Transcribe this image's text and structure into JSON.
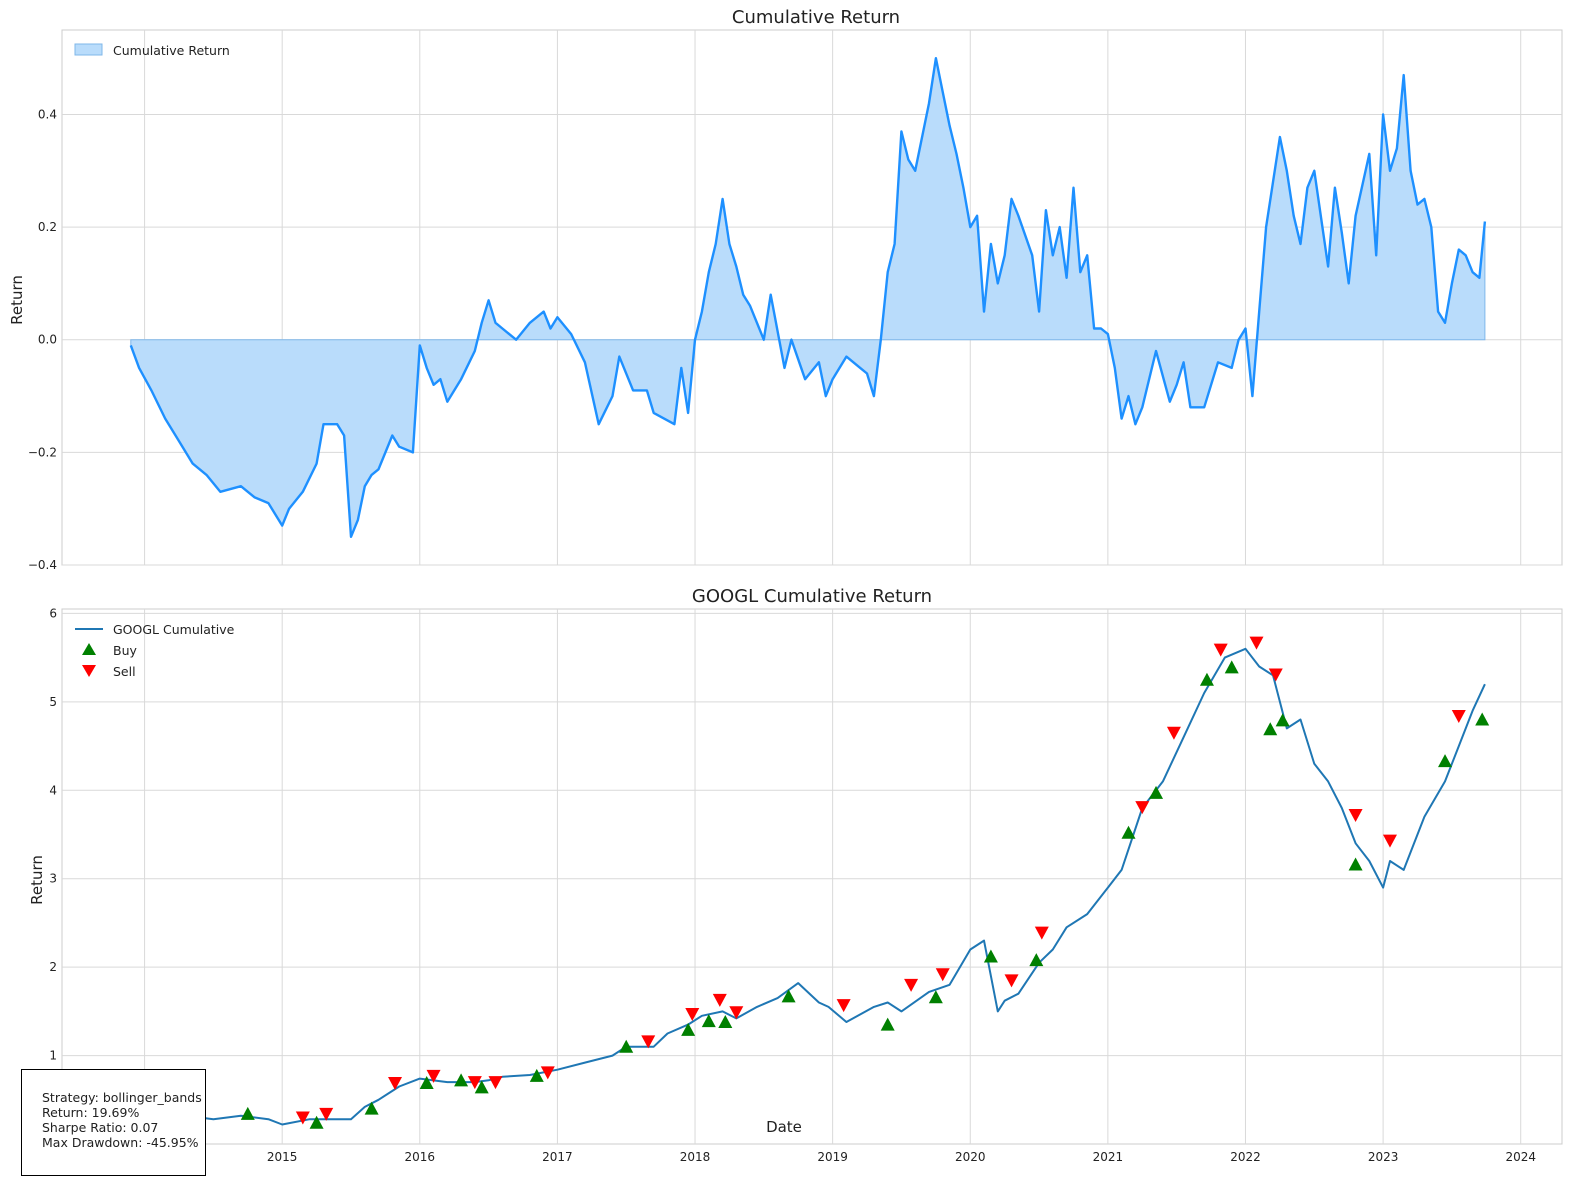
{
  "charts_meta": {
    "strategy_box": {
      "strategy": "Strategy: bollinger_bands",
      "return": "Return: 19.69%",
      "sharpe": "Sharpe Ratio: 0.07",
      "drawdown": "Max Drawdown: -45.95%"
    }
  },
  "chart_data": [
    {
      "type": "area",
      "title": "Cumulative Return",
      "xlabel": "",
      "ylabel": "Return",
      "xlim": [
        2013.4,
        2024.3
      ],
      "ylim": [
        -0.4,
        0.55
      ],
      "x_ticks": [
        "2014",
        "2015",
        "2016",
        "2017",
        "2018",
        "2019",
        "2020",
        "2021",
        "2022",
        "2023",
        "2024"
      ],
      "y_ticks": [
        -0.4,
        -0.2,
        0.0,
        0.2,
        0.4
      ],
      "y_tick_labels": [
        "−0.4",
        "−0.2",
        "0.0",
        "0.2",
        "0.4"
      ],
      "grid": true,
      "legend_position": "top-left",
      "colors": {
        "line": "#1e90ff",
        "fill": "#b9dcfb",
        "fill_edge": "#7fb7ea"
      },
      "series": [
        {
          "name": "Cumulative Return",
          "x": [
            2013.9,
            2013.96,
            2014.05,
            2014.15,
            2014.25,
            2014.35,
            2014.45,
            2014.55,
            2014.7,
            2014.8,
            2014.9,
            2015.0,
            2015.05,
            2015.15,
            2015.25,
            2015.3,
            2015.4,
            2015.45,
            2015.5,
            2015.55,
            2015.6,
            2015.65,
            2015.7,
            2015.8,
            2015.85,
            2015.95,
            2016.0,
            2016.05,
            2016.1,
            2016.15,
            2016.2,
            2016.3,
            2016.4,
            2016.45,
            2016.5,
            2016.55,
            2016.6,
            2016.7,
            2016.8,
            2016.9,
            2016.95,
            2017.0,
            2017.1,
            2017.2,
            2017.3,
            2017.4,
            2017.45,
            2017.55,
            2017.65,
            2017.7,
            2017.85,
            2017.9,
            2017.95,
            2018.0,
            2018.05,
            2018.1,
            2018.15,
            2018.2,
            2018.25,
            2018.3,
            2018.35,
            2018.4,
            2018.5,
            2018.55,
            2018.65,
            2018.7,
            2018.8,
            2018.9,
            2018.95,
            2019.0,
            2019.1,
            2019.2,
            2019.25,
            2019.3,
            2019.35,
            2019.4,
            2019.45,
            2019.5,
            2019.55,
            2019.6,
            2019.7,
            2019.75,
            2019.8,
            2019.85,
            2019.9,
            2019.95,
            2020.0,
            2020.05,
            2020.1,
            2020.15,
            2020.2,
            2020.25,
            2020.3,
            2020.35,
            2020.45,
            2020.5,
            2020.55,
            2020.6,
            2020.65,
            2020.7,
            2020.75,
            2020.8,
            2020.85,
            2020.9,
            2020.95,
            2021.0,
            2021.05,
            2021.1,
            2021.15,
            2021.2,
            2021.25,
            2021.35,
            2021.45,
            2021.5,
            2021.55,
            2021.6,
            2021.7,
            2021.75,
            2021.8,
            2021.9,
            2021.95,
            2022.0,
            2022.05,
            2022.1,
            2022.15,
            2022.2,
            2022.25,
            2022.3,
            2022.35,
            2022.4,
            2022.45,
            2022.5,
            2022.6,
            2022.65,
            2022.7,
            2022.75,
            2022.8,
            2022.9,
            2022.95,
            2023.0,
            2023.05,
            2023.1,
            2023.15,
            2023.2,
            2023.25,
            2023.3,
            2023.35,
            2023.4,
            2023.45,
            2023.5,
            2023.55,
            2023.6,
            2023.65,
            2023.7,
            2023.74
          ],
          "y": [
            -0.01,
            -0.05,
            -0.09,
            -0.14,
            -0.18,
            -0.22,
            -0.24,
            -0.27,
            -0.26,
            -0.28,
            -0.29,
            -0.33,
            -0.3,
            -0.27,
            -0.22,
            -0.15,
            -0.15,
            -0.17,
            -0.35,
            -0.32,
            -0.26,
            -0.24,
            -0.23,
            -0.17,
            -0.19,
            -0.2,
            -0.01,
            -0.05,
            -0.08,
            -0.07,
            -0.11,
            -0.07,
            -0.02,
            0.03,
            0.07,
            0.03,
            0.02,
            0.0,
            0.03,
            0.05,
            0.02,
            0.04,
            0.01,
            -0.04,
            -0.15,
            -0.1,
            -0.03,
            -0.09,
            -0.09,
            -0.13,
            -0.15,
            -0.05,
            -0.13,
            0.0,
            0.05,
            0.12,
            0.17,
            0.25,
            0.17,
            0.13,
            0.08,
            0.06,
            0.0,
            0.08,
            -0.05,
            0.0,
            -0.07,
            -0.04,
            -0.1,
            -0.07,
            -0.03,
            -0.05,
            -0.06,
            -0.1,
            0.0,
            0.12,
            0.17,
            0.37,
            0.32,
            0.3,
            0.42,
            0.5,
            0.44,
            0.38,
            0.33,
            0.27,
            0.2,
            0.22,
            0.05,
            0.17,
            0.1,
            0.15,
            0.25,
            0.22,
            0.15,
            0.05,
            0.23,
            0.15,
            0.2,
            0.11,
            0.27,
            0.12,
            0.15,
            0.02,
            0.02,
            0.01,
            -0.05,
            -0.14,
            -0.1,
            -0.15,
            -0.12,
            -0.02,
            -0.11,
            -0.08,
            -0.04,
            -0.12,
            -0.12,
            -0.08,
            -0.04,
            -0.05,
            0.0,
            0.02,
            -0.1,
            0.05,
            0.2,
            0.28,
            0.36,
            0.3,
            0.22,
            0.17,
            0.27,
            0.3,
            0.13,
            0.27,
            0.19,
            0.1,
            0.22,
            0.33,
            0.15,
            0.4,
            0.3,
            0.34,
            0.47,
            0.3,
            0.24,
            0.25,
            0.2,
            0.05,
            0.03,
            0.1,
            0.16,
            0.15,
            0.12,
            0.11,
            0.21
          ]
        }
      ]
    },
    {
      "type": "line",
      "title": "GOOGL Cumulative Return",
      "xlabel": "Date",
      "ylabel": "Return",
      "xlim": [
        2013.4,
        2024.3
      ],
      "ylim": [
        0.0,
        6.05
      ],
      "x_ticks": [
        "2014",
        "2015",
        "2016",
        "2017",
        "2018",
        "2019",
        "2020",
        "2021",
        "2022",
        "2023",
        "2024"
      ],
      "y_ticks": [
        1,
        2,
        3,
        4,
        5,
        6
      ],
      "grid": true,
      "legend_position": "top-left",
      "colors": {
        "line": "#1f77b4",
        "buy": "#008000",
        "sell": "#ff0000"
      },
      "series": [
        {
          "name": "GOOGL Cumulative",
          "x": [
            2013.9,
            2014.1,
            2014.3,
            2014.5,
            2014.7,
            2014.9,
            2015.0,
            2015.2,
            2015.4,
            2015.5,
            2015.6,
            2015.7,
            2015.85,
            2016.0,
            2016.2,
            2016.4,
            2016.5,
            2016.6,
            2016.8,
            2017.0,
            2017.2,
            2017.4,
            2017.5,
            2017.7,
            2017.8,
            2017.95,
            2018.05,
            2018.2,
            2018.3,
            2018.45,
            2018.6,
            2018.75,
            2018.9,
            2018.97,
            2019.1,
            2019.3,
            2019.4,
            2019.5,
            2019.7,
            2019.85,
            2020.0,
            2020.1,
            2020.2,
            2020.25,
            2020.35,
            2020.5,
            2020.6,
            2020.7,
            2020.85,
            2021.0,
            2021.1,
            2021.25,
            2021.4,
            2021.55,
            2021.7,
            2021.85,
            2022.0,
            2022.1,
            2022.2,
            2022.3,
            2022.4,
            2022.5,
            2022.6,
            2022.7,
            2022.8,
            2022.9,
            2023.0,
            2023.05,
            2023.15,
            2023.3,
            2023.45,
            2023.55,
            2023.65,
            2023.74
          ],
          "y": [
            0.28,
            0.33,
            0.32,
            0.28,
            0.32,
            0.28,
            0.22,
            0.28,
            0.28,
            0.28,
            0.42,
            0.5,
            0.65,
            0.74,
            0.7,
            0.7,
            0.72,
            0.76,
            0.78,
            0.84,
            0.92,
            1.0,
            1.1,
            1.1,
            1.25,
            1.35,
            1.45,
            1.5,
            1.42,
            1.55,
            1.65,
            1.82,
            1.6,
            1.55,
            1.38,
            1.55,
            1.6,
            1.5,
            1.72,
            1.8,
            2.2,
            2.3,
            1.5,
            1.62,
            1.7,
            2.05,
            2.2,
            2.45,
            2.6,
            2.9,
            3.1,
            3.8,
            4.1,
            4.6,
            5.1,
            5.5,
            5.6,
            5.4,
            5.3,
            4.7,
            4.8,
            4.3,
            4.1,
            3.8,
            3.4,
            3.2,
            2.9,
            3.2,
            3.1,
            3.7,
            4.1,
            4.5,
            4.9,
            5.2
          ]
        }
      ],
      "buy_signals": {
        "name": "Buy",
        "x": [
          2014.2,
          2014.75,
          2015.25,
          2015.65,
          2016.05,
          2016.3,
          2016.45,
          2016.85,
          2017.5,
          2017.95,
          2018.1,
          2018.22,
          2018.68,
          2019.4,
          2019.75,
          2020.15,
          2020.48,
          2021.15,
          2021.35,
          2021.72,
          2021.9,
          2022.18,
          2022.27,
          2022.8,
          2023.45,
          2023.72
        ],
        "y": [
          0.37,
          0.34,
          0.24,
          0.4,
          0.69,
          0.72,
          0.64,
          0.77,
          1.1,
          1.29,
          1.39,
          1.38,
          1.67,
          1.35,
          1.66,
          2.12,
          2.08,
          3.52,
          3.97,
          5.25,
          5.39,
          4.69,
          4.79,
          3.16,
          4.33,
          4.8
        ]
      },
      "sell_signals": {
        "name": "Sell",
        "x": [
          2013.88,
          2014.38,
          2015.15,
          2015.32,
          2015.82,
          2016.1,
          2016.4,
          2016.55,
          2016.93,
          2017.66,
          2017.98,
          2018.18,
          2018.3,
          2019.08,
          2019.57,
          2019.8,
          2020.3,
          2020.52,
          2021.25,
          2021.48,
          2021.82,
          2022.08,
          2022.22,
          2022.8,
          2023.05,
          2023.55
        ],
        "y": [
          0.25,
          0.31,
          0.3,
          0.34,
          0.69,
          0.77,
          0.7,
          0.7,
          0.81,
          1.16,
          1.47,
          1.63,
          1.49,
          1.57,
          1.8,
          1.92,
          1.85,
          2.39,
          3.81,
          4.65,
          5.59,
          5.67,
          5.31,
          3.72,
          3.43,
          4.84
        ]
      }
    }
  ]
}
